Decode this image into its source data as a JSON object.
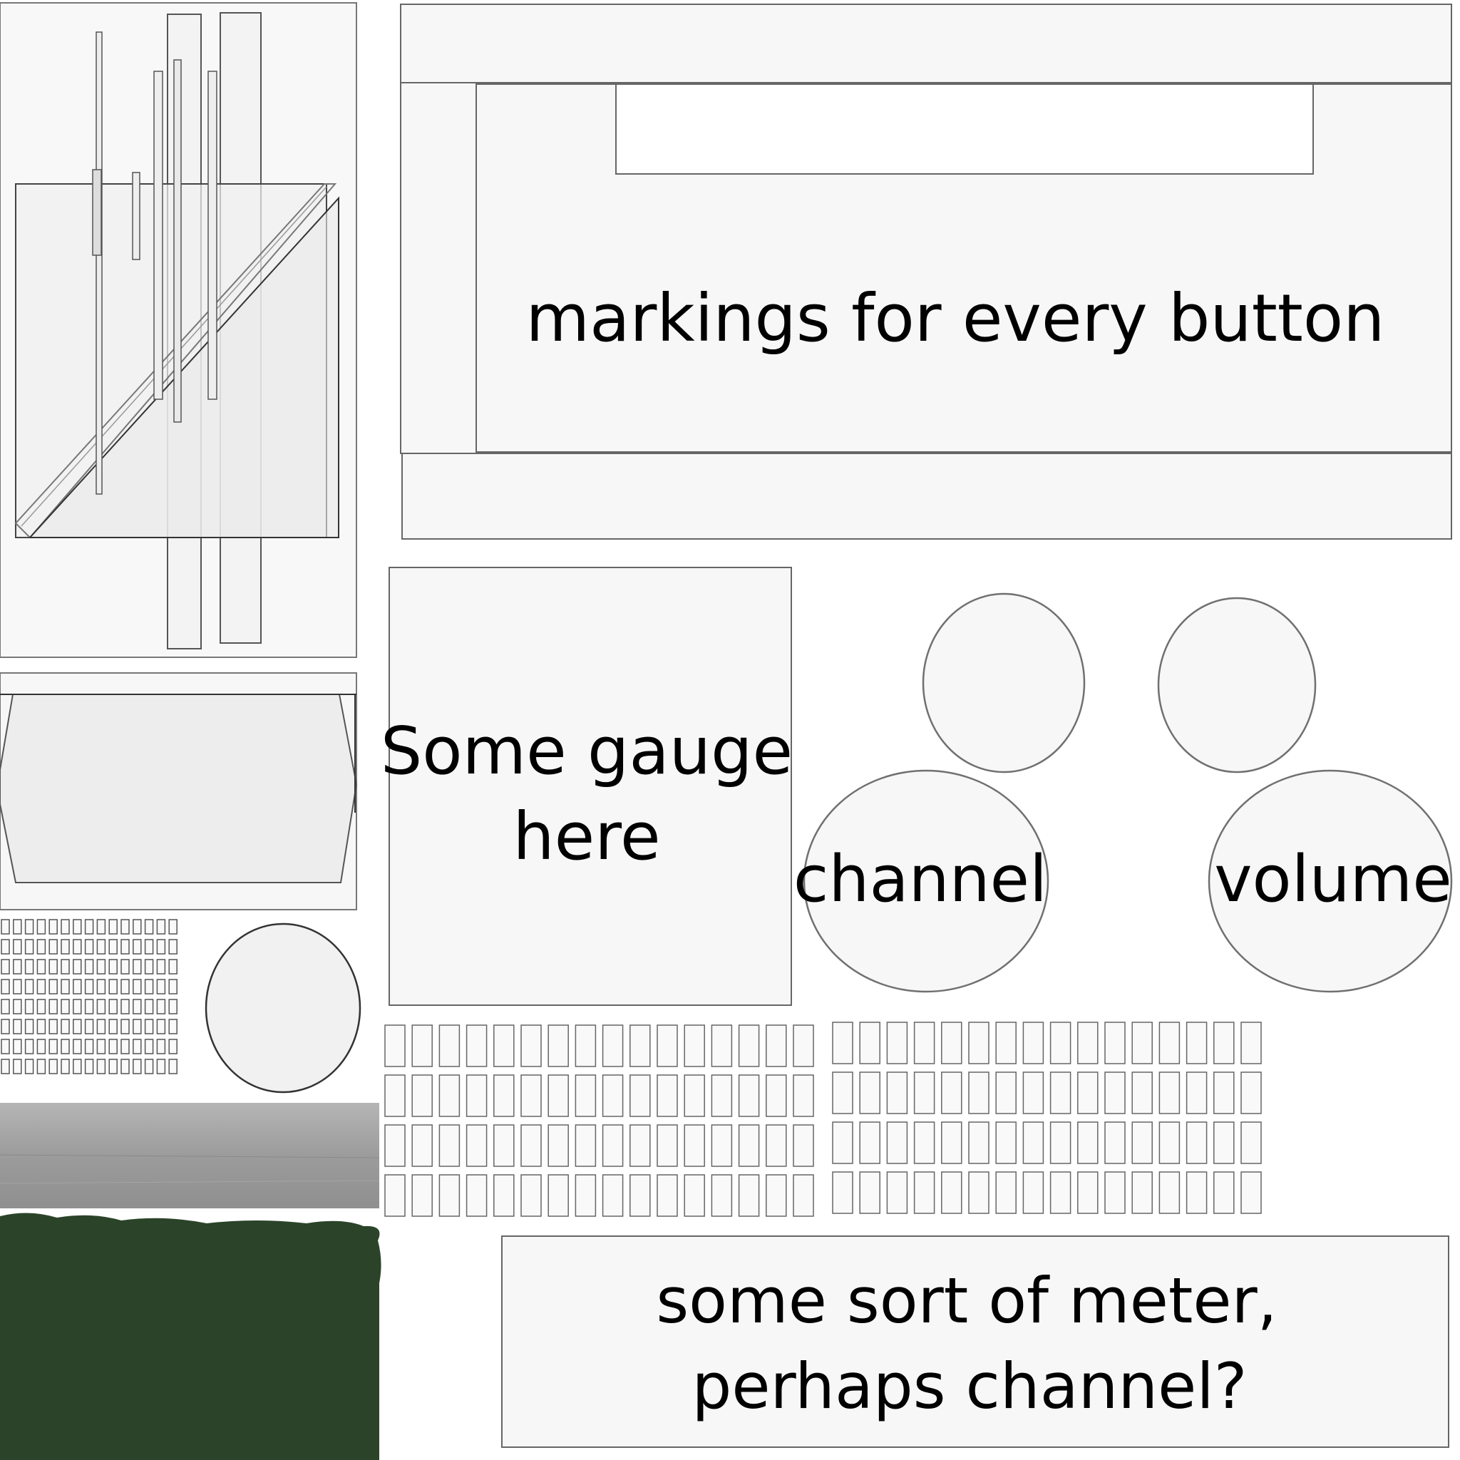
{
  "labels": {
    "button_markings": "markings for every button",
    "gauge": [
      "Some gauge",
      "here"
    ],
    "channel_knob": "channel",
    "volume_knob": "volume",
    "meter": [
      "some sort of meter,",
      "perhaps channel?"
    ]
  },
  "colors": {
    "panel_fill": "#f7f7f7",
    "panel_stroke": "#666666",
    "knob_stroke": "#707070",
    "screen_fill": "#efefef",
    "brushed_metal": "#9a9a9a",
    "felt_green": "#2b4429",
    "background": "#ffffff"
  },
  "button_grids": {
    "small_left": {
      "rows": 8,
      "cols": 15
    },
    "middle": {
      "rows": 4,
      "cols": 16
    },
    "right": {
      "rows": 4,
      "cols": 16
    }
  }
}
